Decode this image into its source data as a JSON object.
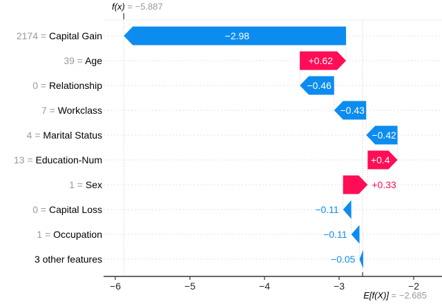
{
  "figure": {
    "fx_label": {
      "prefix": "f(x)",
      "rest": " = −5.887"
    },
    "ef_label": {
      "prefix": "E[f(X)]",
      "rest": " = −2.685"
    }
  },
  "chart_data": {
    "type": "bar",
    "subtype": "shap-waterfall",
    "title": "",
    "xlabel": "",
    "ylabel": "",
    "fx_value": -5.887,
    "base_value": -2.685,
    "xlim": [
      -6.15,
      -1.62
    ],
    "grid": "horizontal-dashed",
    "features": [
      {
        "value": "2174",
        "name": "Capital Gain",
        "phi": -2.98,
        "phi_label": "−2.98"
      },
      {
        "value": "39",
        "name": "Age",
        "phi": 0.62,
        "phi_label": "+0.62"
      },
      {
        "value": "0",
        "name": "Relationship",
        "phi": -0.46,
        "phi_label": "−0.46"
      },
      {
        "value": "7",
        "name": "Workclass",
        "phi": -0.43,
        "phi_label": "−0.43"
      },
      {
        "value": "4",
        "name": "Marital Status",
        "phi": -0.42,
        "phi_label": "−0.42"
      },
      {
        "value": "13",
        "name": "Education-Num",
        "phi": 0.4,
        "phi_label": "+0.4"
      },
      {
        "value": "1",
        "name": "Sex",
        "phi": 0.33,
        "phi_label": "+0.33"
      },
      {
        "value": "0",
        "name": "Capital Loss",
        "phi": -0.11,
        "phi_label": "−0.11"
      },
      {
        "value": "1",
        "name": "Occupation",
        "phi": -0.11,
        "phi_label": "−0.11"
      },
      {
        "value": "",
        "name": "3 other features",
        "phi": -0.05,
        "phi_label": "−0.05"
      }
    ],
    "xticks": {
      "values": [
        -6,
        -5,
        -4,
        -3,
        -2
      ],
      "labels": [
        "−6",
        "−5",
        "−4",
        "−3",
        "−2"
      ]
    },
    "colors": {
      "positive": "#ff0d57",
      "negative": "#0d8cf0",
      "bar_text_inside": "#ffffff",
      "muted_text": "#999999",
      "feature_text": "#000000",
      "tick_text": "#262626",
      "axis": "#333333",
      "grid": "#e1e1e1",
      "refline": "#c9c9c9",
      "top_border": "#ededed"
    }
  }
}
